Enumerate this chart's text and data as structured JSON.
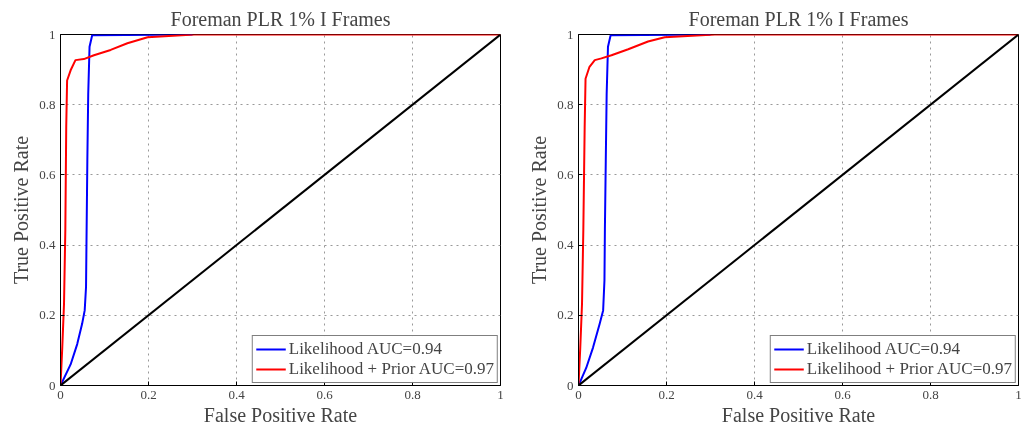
{
  "chart_data": [
    {
      "type": "line",
      "title": "Foreman PLR 1% I Frames",
      "xlabel": "False Positive Rate",
      "ylabel": "True Positive Rate",
      "xlim": [
        0,
        1
      ],
      "ylim": [
        0,
        1
      ],
      "xticks": [
        0,
        0.2,
        0.4,
        0.6,
        0.8,
        1
      ],
      "yticks": [
        0,
        0.2,
        0.4,
        0.6,
        0.8,
        1
      ],
      "grid": true,
      "legend": "bottom right",
      "line_style": "solid",
      "marker": "none",
      "series": [
        {
          "name": "Likelihood AUC=0.94",
          "color": "#0000ff",
          "x": [
            0,
            0.023,
            0.038,
            0.049,
            0.055,
            0.058,
            0.059,
            0.061,
            0.063,
            0.066,
            0.072,
            0.3
          ],
          "values": [
            0,
            0.06,
            0.118,
            0.175,
            0.214,
            0.28,
            0.4,
            0.64,
            0.83,
            0.965,
            0.998,
            1
          ]
        },
        {
          "name": "Likelihood + Prior AUC=0.97",
          "color": "#ff0000",
          "x": [
            0,
            0.004,
            0.008,
            0.011,
            0.013,
            0.015,
            0.023,
            0.034,
            0.053,
            0.076,
            0.114,
            0.152,
            0.198,
            0.304,
            1
          ],
          "values": [
            0,
            0.108,
            0.233,
            0.445,
            0.734,
            0.869,
            0.898,
            0.927,
            0.93,
            0.941,
            0.956,
            0.975,
            0.992,
            1,
            1
          ]
        },
        {
          "color": "#000000",
          "x": [
            0,
            1
          ],
          "values": [
            0,
            1
          ]
        }
      ]
    },
    {
      "type": "line",
      "title": "Foreman PLR 1% I Frames",
      "xlabel": "False Positive Rate",
      "ylabel": "True Positive Rate",
      "xlim": [
        0,
        1
      ],
      "ylim": [
        0,
        1
      ],
      "xticks": [
        0,
        0.2,
        0.4,
        0.6,
        0.8,
        1
      ],
      "yticks": [
        0,
        0.2,
        0.4,
        0.6,
        0.8,
        1
      ],
      "grid": true,
      "legend": "bottom right",
      "line_style": "solid",
      "marker": "none",
      "series": [
        {
          "name": "Likelihood AUC=0.94",
          "color": "#0000ff",
          "x": [
            0,
            0.0175,
            0.033,
            0.048,
            0.056,
            0.059,
            0.06,
            0.062,
            0.064,
            0.067,
            0.073,
            0.3
          ],
          "values": [
            0,
            0.05,
            0.108,
            0.175,
            0.214,
            0.3,
            0.445,
            0.64,
            0.83,
            0.965,
            0.998,
            1
          ]
        },
        {
          "name": "Likelihood + Prior AUC=0.97",
          "color": "#ff0000",
          "x": [
            0,
            0.004,
            0.008,
            0.011,
            0.014,
            0.016,
            0.025,
            0.037,
            0.052,
            0.075,
            0.113,
            0.158,
            0.196,
            0.31,
            1
          ],
          "values": [
            0,
            0.108,
            0.233,
            0.445,
            0.734,
            0.874,
            0.908,
            0.927,
            0.932,
            0.941,
            0.958,
            0.98,
            0.992,
            1,
            1
          ]
        },
        {
          "color": "#000000",
          "x": [
            0,
            1
          ],
          "values": [
            0,
            1
          ]
        }
      ]
    }
  ]
}
